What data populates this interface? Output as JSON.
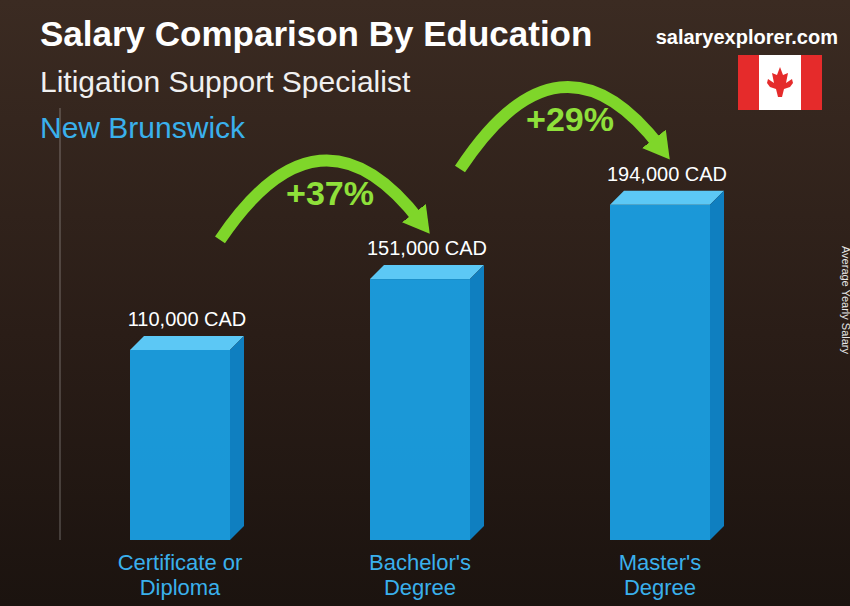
{
  "chart_data": {
    "type": "bar",
    "title": "Salary Comparison By Education",
    "subtitle": "Litigation Support Specialist",
    "region": "New Brunswick",
    "source": "salaryexplorer.com",
    "ylabel": "Average Yearly Salary",
    "categories": [
      "Certificate or Diploma",
      "Bachelor's Degree",
      "Master's Degree"
    ],
    "values": [
      110000,
      151000,
      194000
    ],
    "value_labels": [
      "110,000 CAD",
      "151,000 CAD",
      "194,000 CAD"
    ],
    "color": "#1aa3e8",
    "ylim": [
      0,
      250000
    ],
    "tick_labels": "x",
    "data_labels": true,
    "grid": false,
    "annotations": [
      {
        "text": "+37%",
        "from": "Certificate or Diploma",
        "to": "Bachelor's Degree"
      },
      {
        "text": "+29%",
        "from": "Bachelor's Degree",
        "to": "Master's Degree"
      }
    ]
  }
}
